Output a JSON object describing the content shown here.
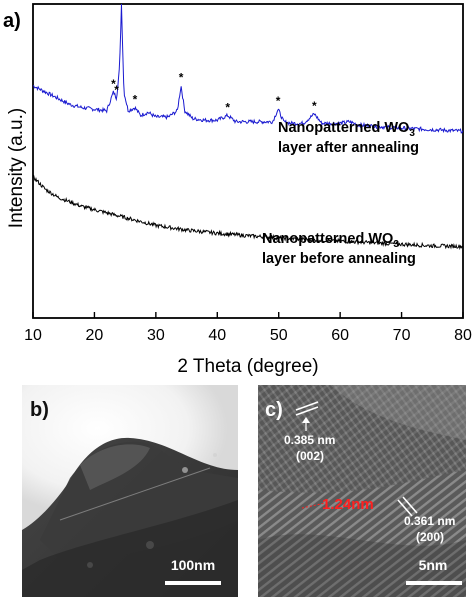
{
  "figure": {
    "panel_a": {
      "label": "a)",
      "ylabel": "Intensity (a.u.)",
      "xlabel": "2 Theta (degree)",
      "xticks": [
        "10",
        "20",
        "30",
        "40",
        "50",
        "60",
        "70",
        "80"
      ],
      "annotation_after_line1": "Nanopatterned WO",
      "annotation_after_sub": "3",
      "annotation_after_line2": "layer after annealing",
      "annotation_before_line1": "Nanopatterned WO",
      "annotation_before_sub": "3",
      "annotation_before_line2": "layer before annealing",
      "peak_marker": "*"
    },
    "panel_b": {
      "label": "b)",
      "scale_bar": "100nm"
    },
    "panel_c": {
      "label": "c)",
      "spacing_1_value": "0.385 nm",
      "spacing_1_plane": "(002)",
      "spacing_2_value": "0.361 nm",
      "spacing_2_plane": "(200)",
      "measurement": "1.24nm",
      "scale_bar": "5nm"
    }
  },
  "colors": {
    "after_series": "#1a1ad0",
    "before_series": "#000000",
    "measurement": "#ff2020",
    "annotation": "#000000"
  },
  "chart_data": {
    "type": "line",
    "xlabel": "2 Theta (degree)",
    "ylabel": "Intensity (a.u.)",
    "xlim": [
      10,
      80
    ],
    "yticks_shown": false,
    "series": [
      {
        "name": "Nanopatterned WO3 layer after annealing",
        "x": [
          10,
          12,
          14,
          16,
          18,
          20,
          22,
          23.1,
          23.6,
          24.1,
          24.4,
          24.8,
          25.5,
          26.6,
          27.5,
          28.7,
          30,
          32,
          33.5,
          34.1,
          34.7,
          36,
          38,
          40,
          41.7,
          43,
          45,
          47,
          49,
          49.9,
          50.8,
          52,
          54,
          55.8,
          57,
          60,
          61.5,
          63,
          66,
          70,
          75,
          80
        ],
        "y": [
          0.74,
          0.72,
          0.7,
          0.68,
          0.67,
          0.665,
          0.66,
          0.72,
          0.7,
          0.8,
          1.0,
          0.72,
          0.66,
          0.67,
          0.645,
          0.655,
          0.64,
          0.64,
          0.66,
          0.74,
          0.66,
          0.635,
          0.63,
          0.63,
          0.645,
          0.625,
          0.625,
          0.625,
          0.625,
          0.665,
          0.625,
          0.62,
          0.62,
          0.65,
          0.62,
          0.62,
          0.625,
          0.615,
          0.61,
          0.605,
          0.6,
          0.595
        ]
      },
      {
        "name": "Nanopatterned WO3 layer before annealing",
        "x": [
          10,
          12,
          14,
          16,
          18,
          20,
          22,
          25,
          28,
          30,
          35,
          40,
          45,
          50,
          55,
          60,
          65,
          70,
          75,
          80
        ],
        "y": [
          0.45,
          0.41,
          0.385,
          0.37,
          0.355,
          0.345,
          0.335,
          0.32,
          0.305,
          0.295,
          0.28,
          0.27,
          0.262,
          0.255,
          0.25,
          0.245,
          0.24,
          0.235,
          0.23,
          0.228
        ]
      }
    ],
    "peak_markers_2theta": [
      23.1,
      23.6,
      24.4,
      26.6,
      34.1,
      41.7,
      49.9,
      55.8
    ]
  }
}
